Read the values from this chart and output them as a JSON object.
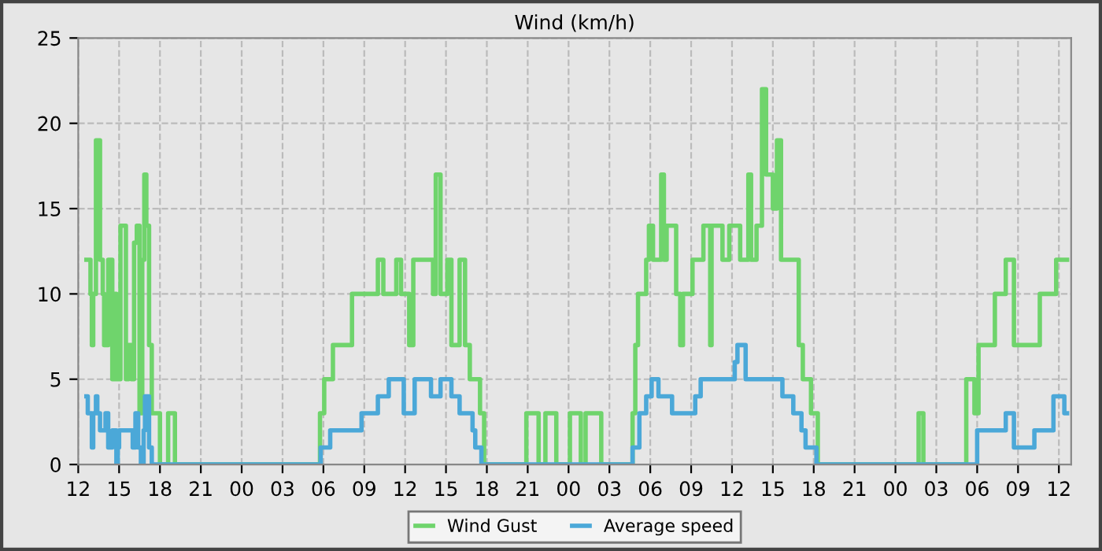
{
  "chart_data": {
    "type": "step",
    "title": "Wind (km/h)",
    "xlim": [
      12,
      84.9
    ],
    "ylim": [
      0,
      25
    ],
    "yticks": [
      0,
      5,
      10,
      15,
      20,
      25
    ],
    "xticks": [
      12,
      15,
      18,
      21,
      {
        "value": 24,
        "label": "00"
      },
      {
        "value": 27,
        "label": "03"
      },
      {
        "value": 30,
        "label": "06"
      },
      {
        "value": 33,
        "label": "09"
      },
      {
        "value": 36,
        "label": "12"
      },
      {
        "value": 39,
        "label": "15"
      },
      {
        "value": 42,
        "label": "18"
      },
      {
        "value": 45,
        "label": "21"
      },
      {
        "value": 48,
        "label": "00"
      },
      {
        "value": 51,
        "label": "03"
      },
      {
        "value": 54,
        "label": "06"
      },
      {
        "value": 57,
        "label": "09"
      },
      {
        "value": 60,
        "label": "12"
      },
      {
        "value": 63,
        "label": "15"
      },
      {
        "value": 66,
        "label": "18"
      },
      {
        "value": 69,
        "label": "21"
      },
      {
        "value": 72,
        "label": "00"
      },
      {
        "value": 75,
        "label": "03"
      },
      {
        "value": 78,
        "label": "06"
      },
      {
        "value": 81,
        "label": "09"
      },
      {
        "value": 84,
        "label": "12"
      }
    ],
    "grid": true,
    "legend": "bottom",
    "line_style": "solid",
    "marker": "none",
    "series": [
      {
        "name": "Wind Gust",
        "color": "#6fd46c",
        "x": [
          12.6,
          12.9,
          13.0,
          13.1,
          13.3,
          13.6,
          13.8,
          13.9,
          14.2,
          14.5,
          14.7,
          14.8,
          15.1,
          15.5,
          15.7,
          15.9,
          16.1,
          16.3,
          16.5,
          16.7,
          16.85,
          17.0,
          17.2,
          17.4,
          18.0,
          18.6,
          19.1,
          29.75,
          30.06,
          30.7,
          32.1,
          33.0,
          34.0,
          34.4,
          35.35,
          35.7,
          36.3,
          36.6,
          38.05,
          38.25,
          38.6,
          39.1,
          39.4,
          40.0,
          40.4,
          40.75,
          41.5,
          41.8,
          44.9,
          45.8,
          46.3,
          47.1,
          48.1,
          48.9,
          49.25,
          50.4,
          52.7,
          52.9,
          53.1,
          53.7,
          53.9,
          54.2,
          54.8,
          55.0,
          55.2,
          55.9,
          56.2,
          56.4,
          57.1,
          57.9,
          58.4,
          58.5,
          59.3,
          59.8,
          60.6,
          61.2,
          61.4,
          61.8,
          62.2,
          62.5,
          63.0,
          63.3,
          63.6,
          64.9,
          65.2,
          65.8,
          66.3,
          73.7,
          74.05,
          77.2,
          77.8,
          78.1,
          78.8,
          79.3,
          80.1,
          80.7,
          81.1,
          82.6,
          83.8,
          84.6
        ],
        "values": [
          12,
          10,
          7,
          10,
          19,
          12,
          10,
          7,
          12,
          5,
          10,
          5,
          14,
          5,
          7,
          5,
          13,
          14,
          3,
          12,
          17,
          14,
          7,
          3,
          0,
          3,
          0,
          3,
          5,
          7,
          10,
          10,
          12,
          10,
          12,
          10,
          7,
          12,
          10,
          17,
          10,
          12,
          7,
          12,
          7,
          5,
          3,
          0,
          3,
          0,
          3,
          0,
          3,
          0,
          3,
          0,
          3,
          7,
          10,
          12,
          14,
          12,
          17,
          12,
          14,
          10,
          7,
          10,
          12,
          14,
          7,
          14,
          12,
          14,
          12,
          17,
          12,
          14,
          22,
          17,
          15,
          19,
          12,
          7,
          5,
          3,
          0,
          3,
          0,
          5,
          3,
          7,
          7,
          10,
          12,
          7,
          7,
          10,
          12,
          12
        ]
      },
      {
        "name": "Average speed",
        "color": "#4ba8d8",
        "x": [
          12.6,
          12.7,
          13.0,
          13.1,
          13.3,
          13.4,
          13.6,
          14.0,
          14.2,
          14.5,
          14.8,
          14.9,
          15.0,
          16.0,
          16.2,
          16.4,
          16.6,
          16.8,
          16.9,
          17.2,
          17.4,
          29.8,
          30.5,
          32.8,
          34.0,
          34.8,
          35.9,
          36.7,
          37.9,
          38.6,
          39.4,
          40.0,
          40.95,
          41.15,
          41.6,
          52.7,
          53.2,
          53.7,
          54.1,
          54.6,
          55.6,
          57.3,
          57.7,
          60.2,
          60.4,
          61.0,
          62.9,
          63.7,
          64.5,
          65.1,
          65.4,
          66.2,
          78.0,
          79.9,
          80.1,
          80.7,
          82.2,
          83.6,
          84.4,
          84.6
        ],
        "values": [
          4,
          3,
          1,
          3,
          4,
          3,
          2,
          3,
          1,
          2,
          0,
          1,
          2,
          1,
          3,
          1,
          0,
          2,
          4,
          1,
          0,
          1,
          2,
          3,
          4,
          5,
          3,
          5,
          4,
          5,
          4,
          3,
          2,
          1,
          0,
          1,
          3,
          4,
          5,
          4,
          3,
          4,
          5,
          6,
          7,
          5,
          5,
          4,
          3,
          2,
          1,
          0,
          2,
          2,
          3,
          1,
          2,
          4,
          3,
          3
        ]
      }
    ]
  }
}
